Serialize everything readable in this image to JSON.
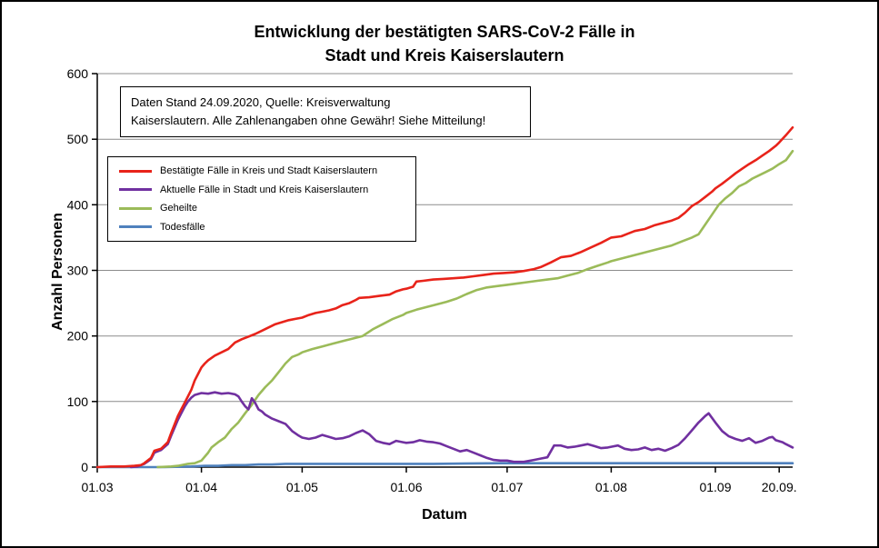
{
  "chart_data": {
    "type": "line",
    "title": "Entwicklung der bestätigten SARS-CoV-2 Fälle in\nStadt und Kreis Kaiserslautern",
    "note": "Daten Stand 24.09.2020, Quelle: Kreisverwaltung\nKaiserslautern. Alle Zahlenangaben ohne Gewähr! Siehe Mitteilung!",
    "xlabel": "Datum",
    "ylabel": "Anzahl Personen",
    "ylim": [
      0,
      600
    ],
    "y_ticks": [
      0,
      100,
      200,
      300,
      400,
      500,
      600
    ],
    "x_range_days": [
      0,
      207
    ],
    "x_ticks": [
      {
        "day": 0,
        "label": "01.03"
      },
      {
        "day": 31,
        "label": "01.04"
      },
      {
        "day": 61,
        "label": "01.05"
      },
      {
        "day": 92,
        "label": "01.06"
      },
      {
        "day": 122,
        "label": "01.07"
      },
      {
        "day": 153,
        "label": "01.08"
      },
      {
        "day": 184,
        "label": "01.09"
      },
      {
        "day": 203,
        "label": "20.09."
      }
    ],
    "grid": "horizontal",
    "legend_position": "upper-left-box",
    "series": [
      {
        "id": "bestaetigte-faelle",
        "name": "Bestätigte Fälle in Kreis und Stadt Kaiserslautern",
        "color": "#e8231a",
        "points": [
          [
            0,
            0
          ],
          [
            4,
            1
          ],
          [
            8,
            1
          ],
          [
            11,
            2
          ],
          [
            13,
            3
          ],
          [
            14,
            6
          ],
          [
            16,
            14
          ],
          [
            17,
            25
          ],
          [
            19,
            28
          ],
          [
            21,
            38
          ],
          [
            22,
            52
          ],
          [
            23,
            65
          ],
          [
            24,
            78
          ],
          [
            25,
            88
          ],
          [
            26,
            98
          ],
          [
            27,
            108
          ],
          [
            28,
            118
          ],
          [
            29,
            132
          ],
          [
            30,
            142
          ],
          [
            31,
            152
          ],
          [
            32,
            158
          ],
          [
            33,
            163
          ],
          [
            35,
            170
          ],
          [
            37,
            175
          ],
          [
            39,
            180
          ],
          [
            41,
            190
          ],
          [
            43,
            195
          ],
          [
            45,
            199
          ],
          [
            47,
            203
          ],
          [
            49,
            208
          ],
          [
            51,
            213
          ],
          [
            53,
            218
          ],
          [
            55,
            221
          ],
          [
            57,
            224
          ],
          [
            59,
            226
          ],
          [
            61,
            228
          ],
          [
            63,
            232
          ],
          [
            65,
            235
          ],
          [
            67,
            237
          ],
          [
            69,
            239
          ],
          [
            71,
            242
          ],
          [
            73,
            247
          ],
          [
            75,
            250
          ],
          [
            77,
            255
          ],
          [
            78,
            258
          ],
          [
            81,
            259
          ],
          [
            84,
            261
          ],
          [
            87,
            263
          ],
          [
            89,
            268
          ],
          [
            91,
            271
          ],
          [
            92,
            272
          ],
          [
            94,
            275
          ],
          [
            95,
            283
          ],
          [
            97,
            284
          ],
          [
            100,
            286
          ],
          [
            103,
            287
          ],
          [
            106,
            288
          ],
          [
            109,
            289
          ],
          [
            112,
            291
          ],
          [
            115,
            293
          ],
          [
            118,
            295
          ],
          [
            121,
            296
          ],
          [
            124,
            297
          ],
          [
            127,
            299
          ],
          [
            130,
            302
          ],
          [
            132,
            305
          ],
          [
            135,
            312
          ],
          [
            138,
            320
          ],
          [
            141,
            322
          ],
          [
            144,
            328
          ],
          [
            147,
            335
          ],
          [
            150,
            342
          ],
          [
            153,
            350
          ],
          [
            156,
            352
          ],
          [
            158,
            356
          ],
          [
            160,
            360
          ],
          [
            163,
            363
          ],
          [
            166,
            369
          ],
          [
            169,
            373
          ],
          [
            171,
            376
          ],
          [
            173,
            380
          ],
          [
            175,
            388
          ],
          [
            177,
            398
          ],
          [
            179,
            404
          ],
          [
            181,
            412
          ],
          [
            183,
            420
          ],
          [
            184,
            425
          ],
          [
            186,
            432
          ],
          [
            188,
            440
          ],
          [
            190,
            448
          ],
          [
            192,
            455
          ],
          [
            194,
            462
          ],
          [
            196,
            468
          ],
          [
            198,
            475
          ],
          [
            200,
            482
          ],
          [
            202,
            490
          ],
          [
            203,
            495
          ],
          [
            205,
            506
          ],
          [
            207,
            518
          ]
        ]
      },
      {
        "id": "aktuelle-faelle",
        "name": "Aktuelle Fälle in Stadt und Kreis Kaiserslautern",
        "color": "#7030a0",
        "points": [
          [
            10,
            0
          ],
          [
            12,
            1
          ],
          [
            14,
            5
          ],
          [
            16,
            12
          ],
          [
            17,
            22
          ],
          [
            19,
            26
          ],
          [
            21,
            35
          ],
          [
            22,
            48
          ],
          [
            23,
            60
          ],
          [
            24,
            72
          ],
          [
            25,
            82
          ],
          [
            26,
            92
          ],
          [
            27,
            100
          ],
          [
            28,
            106
          ],
          [
            29,
            110
          ],
          [
            31,
            113
          ],
          [
            33,
            112
          ],
          [
            35,
            114
          ],
          [
            37,
            112
          ],
          [
            39,
            113
          ],
          [
            41,
            111
          ],
          [
            42,
            108
          ],
          [
            43,
            100
          ],
          [
            44,
            93
          ],
          [
            45,
            88
          ],
          [
            46,
            105
          ],
          [
            47,
            98
          ],
          [
            48,
            88
          ],
          [
            49,
            85
          ],
          [
            50,
            80
          ],
          [
            52,
            74
          ],
          [
            54,
            70
          ],
          [
            56,
            66
          ],
          [
            58,
            55
          ],
          [
            60,
            48
          ],
          [
            61,
            45
          ],
          [
            63,
            43
          ],
          [
            65,
            45
          ],
          [
            67,
            49
          ],
          [
            69,
            46
          ],
          [
            71,
            43
          ],
          [
            73,
            44
          ],
          [
            75,
            47
          ],
          [
            77,
            52
          ],
          [
            79,
            56
          ],
          [
            81,
            50
          ],
          [
            83,
            40
          ],
          [
            85,
            37
          ],
          [
            87,
            35
          ],
          [
            89,
            40
          ],
          [
            91,
            38
          ],
          [
            92,
            37
          ],
          [
            94,
            38
          ],
          [
            96,
            41
          ],
          [
            98,
            39
          ],
          [
            100,
            38
          ],
          [
            102,
            36
          ],
          [
            104,
            32
          ],
          [
            106,
            28
          ],
          [
            108,
            24
          ],
          [
            110,
            26
          ],
          [
            112,
            22
          ],
          [
            114,
            18
          ],
          [
            116,
            14
          ],
          [
            118,
            11
          ],
          [
            120,
            10
          ],
          [
            122,
            10
          ],
          [
            124,
            8
          ],
          [
            127,
            8
          ],
          [
            130,
            11
          ],
          [
            132,
            13
          ],
          [
            134,
            15
          ],
          [
            136,
            33
          ],
          [
            138,
            33
          ],
          [
            140,
            30
          ],
          [
            142,
            31
          ],
          [
            144,
            33
          ],
          [
            146,
            35
          ],
          [
            148,
            32
          ],
          [
            150,
            29
          ],
          [
            152,
            30
          ],
          [
            153,
            31
          ],
          [
            155,
            33
          ],
          [
            157,
            28
          ],
          [
            159,
            26
          ],
          [
            161,
            27
          ],
          [
            163,
            30
          ],
          [
            165,
            26
          ],
          [
            167,
            28
          ],
          [
            169,
            25
          ],
          [
            171,
            29
          ],
          [
            173,
            34
          ],
          [
            175,
            44
          ],
          [
            177,
            56
          ],
          [
            179,
            68
          ],
          [
            181,
            78
          ],
          [
            182,
            82
          ],
          [
            184,
            68
          ],
          [
            186,
            55
          ],
          [
            188,
            47
          ],
          [
            190,
            43
          ],
          [
            192,
            40
          ],
          [
            194,
            44
          ],
          [
            196,
            37
          ],
          [
            198,
            40
          ],
          [
            200,
            45
          ],
          [
            201,
            46
          ],
          [
            202,
            41
          ],
          [
            204,
            38
          ],
          [
            205,
            35
          ],
          [
            207,
            30
          ]
        ]
      },
      {
        "id": "geheilte",
        "name": "Geheilte",
        "color": "#9bbb59",
        "points": [
          [
            18,
            0
          ],
          [
            22,
            1
          ],
          [
            24,
            2
          ],
          [
            27,
            5
          ],
          [
            29,
            6
          ],
          [
            31,
            10
          ],
          [
            33,
            22
          ],
          [
            34,
            30
          ],
          [
            36,
            38
          ],
          [
            38,
            45
          ],
          [
            40,
            58
          ],
          [
            42,
            68
          ],
          [
            44,
            82
          ],
          [
            46,
            95
          ],
          [
            48,
            110
          ],
          [
            50,
            122
          ],
          [
            52,
            132
          ],
          [
            54,
            145
          ],
          [
            56,
            158
          ],
          [
            58,
            168
          ],
          [
            60,
            172
          ],
          [
            61,
            175
          ],
          [
            64,
            180
          ],
          [
            67,
            184
          ],
          [
            70,
            188
          ],
          [
            73,
            192
          ],
          [
            76,
            196
          ],
          [
            79,
            200
          ],
          [
            82,
            210
          ],
          [
            85,
            218
          ],
          [
            88,
            226
          ],
          [
            91,
            232
          ],
          [
            92,
            235
          ],
          [
            95,
            240
          ],
          [
            98,
            244
          ],
          [
            101,
            248
          ],
          [
            104,
            252
          ],
          [
            107,
            257
          ],
          [
            110,
            264
          ],
          [
            113,
            270
          ],
          [
            116,
            274
          ],
          [
            119,
            276
          ],
          [
            122,
            278
          ],
          [
            125,
            280
          ],
          [
            128,
            282
          ],
          [
            131,
            284
          ],
          [
            134,
            286
          ],
          [
            137,
            288
          ],
          [
            140,
            292
          ],
          [
            143,
            296
          ],
          [
            146,
            302
          ],
          [
            149,
            307
          ],
          [
            152,
            312
          ],
          [
            153,
            314
          ],
          [
            156,
            318
          ],
          [
            159,
            322
          ],
          [
            162,
            326
          ],
          [
            165,
            330
          ],
          [
            168,
            334
          ],
          [
            171,
            338
          ],
          [
            174,
            344
          ],
          [
            177,
            350
          ],
          [
            179,
            355
          ],
          [
            181,
            370
          ],
          [
            183,
            385
          ],
          [
            185,
            400
          ],
          [
            187,
            410
          ],
          [
            189,
            418
          ],
          [
            191,
            428
          ],
          [
            193,
            433
          ],
          [
            195,
            440
          ],
          [
            197,
            445
          ],
          [
            199,
            450
          ],
          [
            201,
            455
          ],
          [
            203,
            462
          ],
          [
            205,
            468
          ],
          [
            207,
            482
          ]
        ]
      },
      {
        "id": "todesfaelle",
        "name": "Todesfälle",
        "color": "#4f81bd",
        "points": [
          [
            0,
            0
          ],
          [
            20,
            0
          ],
          [
            28,
            1
          ],
          [
            32,
            2
          ],
          [
            36,
            2
          ],
          [
            40,
            3
          ],
          [
            44,
            3
          ],
          [
            48,
            4
          ],
          [
            52,
            4
          ],
          [
            56,
            5
          ],
          [
            60,
            5
          ],
          [
            80,
            5
          ],
          [
            100,
            5
          ],
          [
            120,
            6
          ],
          [
            150,
            6
          ],
          [
            180,
            6
          ],
          [
            207,
            6
          ]
        ]
      }
    ]
  }
}
